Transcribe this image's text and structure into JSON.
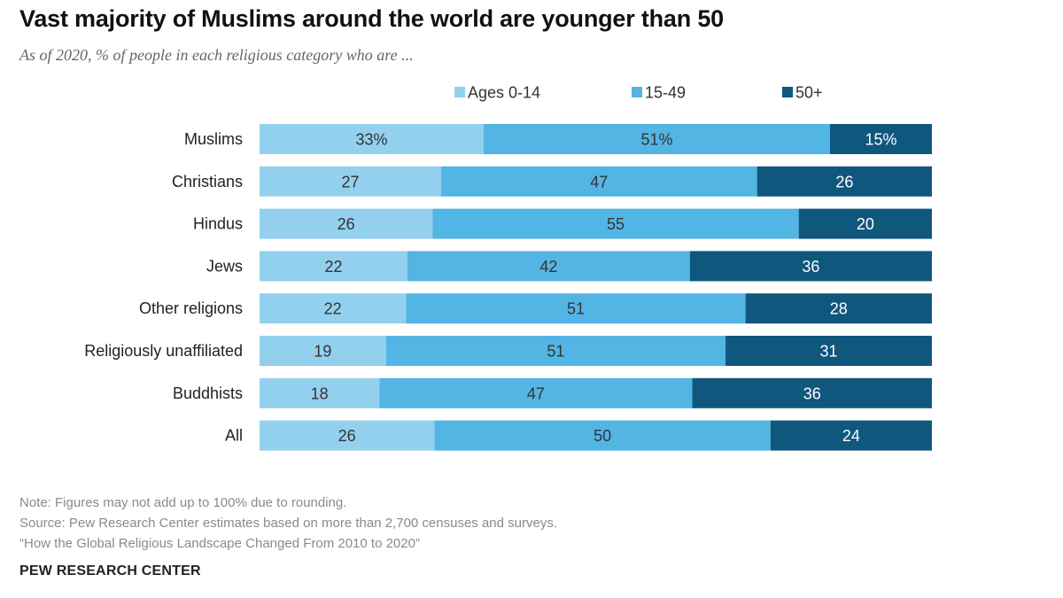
{
  "title": "Vast majority of Muslims around the world are younger than 50",
  "subtitle": "As of 2020, % of people in each religious category who are ...",
  "chart_data": {
    "type": "bar",
    "orientation": "horizontal",
    "stacked": true,
    "title": "Vast majority of Muslims around the world are younger than 50",
    "subtitle": "As of 2020, % of people in each religious category who are ...",
    "xlabel": "",
    "ylabel": "",
    "xlim": [
      0,
      100
    ],
    "legend_position": "top",
    "categories": [
      "Muslims",
      "Christians",
      "Hindus",
      "Jews",
      "Other religions",
      "Religiously unaffiliated",
      "Buddhists",
      "All"
    ],
    "series": [
      {
        "name": "Ages 0-14",
        "color": "#93d0ee",
        "text_color": "#333333",
        "values": [
          33,
          27,
          26,
          22,
          22,
          19,
          18,
          26
        ],
        "labels": [
          "33%",
          "27",
          "26",
          "22",
          "22",
          "19",
          "18",
          "26"
        ]
      },
      {
        "name": "15-49",
        "color": "#52b5e4",
        "text_color": "#333333",
        "values": [
          51,
          47,
          55,
          42,
          51,
          51,
          47,
          50
        ],
        "labels": [
          "51%",
          "47",
          "55",
          "42",
          "51",
          "51",
          "47",
          "50"
        ]
      },
      {
        "name": "50+",
        "color": "#10577e",
        "text_color": "#ffffff",
        "values": [
          15,
          26,
          20,
          36,
          28,
          31,
          36,
          24
        ],
        "labels": [
          "15%",
          "26",
          "20",
          "36",
          "28",
          "31",
          "36",
          "24"
        ]
      }
    ]
  },
  "notes": [
    "Note: Figures may not add up to 100% due to rounding.",
    "Source: Pew Research Center estimates based on more than 2,700 censuses and surveys.",
    "“How the Global Religious Landscape Changed From 2010 to 2020”"
  ],
  "brand": "PEW RESEARCH CENTER"
}
